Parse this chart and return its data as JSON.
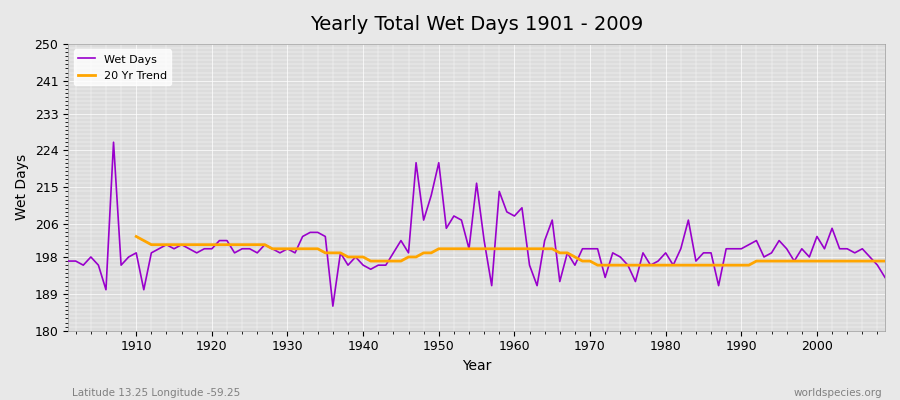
{
  "title": "Yearly Total Wet Days 1901 - 2009",
  "xlabel": "Year",
  "ylabel": "Wet Days",
  "footnote_left": "Latitude 13.25 Longitude -59.25",
  "footnote_right": "worldspecies.org",
  "ylim": [
    180,
    250
  ],
  "yticks": [
    180,
    189,
    198,
    206,
    215,
    224,
    233,
    241,
    250
  ],
  "line_color": "#9900cc",
  "trend_color": "#FFA500",
  "bg_color": "#e8e8e8",
  "plot_bg_color": "#dcdcdc",
  "legend_label_wet": "Wet Days",
  "legend_label_trend": "20 Yr Trend",
  "years": [
    1901,
    1902,
    1903,
    1904,
    1905,
    1906,
    1907,
    1908,
    1909,
    1910,
    1911,
    1912,
    1913,
    1914,
    1915,
    1916,
    1917,
    1918,
    1919,
    1920,
    1921,
    1922,
    1923,
    1924,
    1925,
    1926,
    1927,
    1928,
    1929,
    1930,
    1931,
    1932,
    1933,
    1934,
    1935,
    1936,
    1937,
    1938,
    1939,
    1940,
    1941,
    1942,
    1943,
    1944,
    1945,
    1946,
    1947,
    1948,
    1949,
    1950,
    1951,
    1952,
    1953,
    1954,
    1955,
    1956,
    1957,
    1958,
    1959,
    1960,
    1961,
    1962,
    1963,
    1964,
    1965,
    1966,
    1967,
    1968,
    1969,
    1970,
    1971,
    1972,
    1973,
    1974,
    1975,
    1976,
    1977,
    1978,
    1979,
    1980,
    1981,
    1982,
    1983,
    1984,
    1985,
    1986,
    1987,
    1988,
    1989,
    1990,
    1991,
    1992,
    1993,
    1994,
    1995,
    1996,
    1997,
    1998,
    1999,
    2000,
    2001,
    2002,
    2003,
    2004,
    2005,
    2006,
    2007,
    2008,
    2009
  ],
  "wet_days": [
    197,
    197,
    196,
    198,
    196,
    190,
    226,
    196,
    198,
    199,
    190,
    199,
    200,
    201,
    200,
    201,
    200,
    199,
    200,
    200,
    202,
    202,
    199,
    200,
    200,
    199,
    201,
    200,
    199,
    200,
    199,
    203,
    204,
    204,
    203,
    186,
    199,
    196,
    198,
    196,
    195,
    196,
    196,
    199,
    202,
    199,
    221,
    207,
    213,
    221,
    205,
    208,
    207,
    200,
    216,
    202,
    191,
    214,
    209,
    208,
    210,
    196,
    191,
    202,
    207,
    192,
    199,
    196,
    200,
    200,
    200,
    193,
    199,
    198,
    196,
    192,
    199,
    196,
    197,
    199,
    196,
    200,
    207,
    197,
    199,
    199,
    191,
    200,
    200,
    200,
    201,
    202,
    198,
    199,
    202,
    200,
    197,
    200,
    198,
    203,
    200,
    205,
    200,
    200,
    199,
    200,
    198,
    196,
    193
  ],
  "trend_years": [
    1910,
    1911,
    1912,
    1913,
    1914,
    1915,
    1916,
    1917,
    1918,
    1919,
    1920,
    1921,
    1922,
    1923,
    1924,
    1925,
    1926,
    1927,
    1928,
    1929,
    1930,
    1931,
    1932,
    1933,
    1934,
    1935,
    1936,
    1937,
    1938,
    1939,
    1940,
    1941,
    1942,
    1943,
    1944,
    1945,
    1946,
    1947,
    1948,
    1949,
    1950,
    1951,
    1952,
    1953,
    1954,
    1955,
    1956,
    1957,
    1958,
    1959,
    1960,
    1961,
    1962,
    1963,
    1964,
    1965,
    1966,
    1967,
    1968,
    1969,
    1970,
    1971,
    1972,
    1973,
    1974,
    1975,
    1976,
    1977,
    1978,
    1979,
    1980,
    1981,
    1982,
    1983,
    1984,
    1985,
    1986,
    1987,
    1988,
    1989,
    1990,
    1991,
    1992,
    1993,
    1994,
    1995,
    1996,
    1997,
    1998,
    1999,
    2000,
    2001,
    2002,
    2003,
    2004,
    2005,
    2006,
    2007,
    2008,
    2009
  ],
  "trend_values": [
    203,
    202,
    201,
    201,
    201,
    201,
    201,
    201,
    201,
    201,
    201,
    201,
    201,
    201,
    201,
    201,
    201,
    201,
    200,
    200,
    200,
    200,
    200,
    200,
    200,
    199,
    199,
    199,
    198,
    198,
    198,
    197,
    197,
    197,
    197,
    197,
    198,
    198,
    199,
    199,
    200,
    200,
    200,
    200,
    200,
    200,
    200,
    200,
    200,
    200,
    200,
    200,
    200,
    200,
    200,
    200,
    199,
    199,
    198,
    197,
    197,
    196,
    196,
    196,
    196,
    196,
    196,
    196,
    196,
    196,
    196,
    196,
    196,
    196,
    196,
    196,
    196,
    196,
    196,
    196,
    196,
    196,
    197,
    197,
    197,
    197,
    197,
    197,
    197,
    197,
    197,
    197,
    197,
    197,
    197,
    197,
    197,
    197,
    197,
    197
  ]
}
